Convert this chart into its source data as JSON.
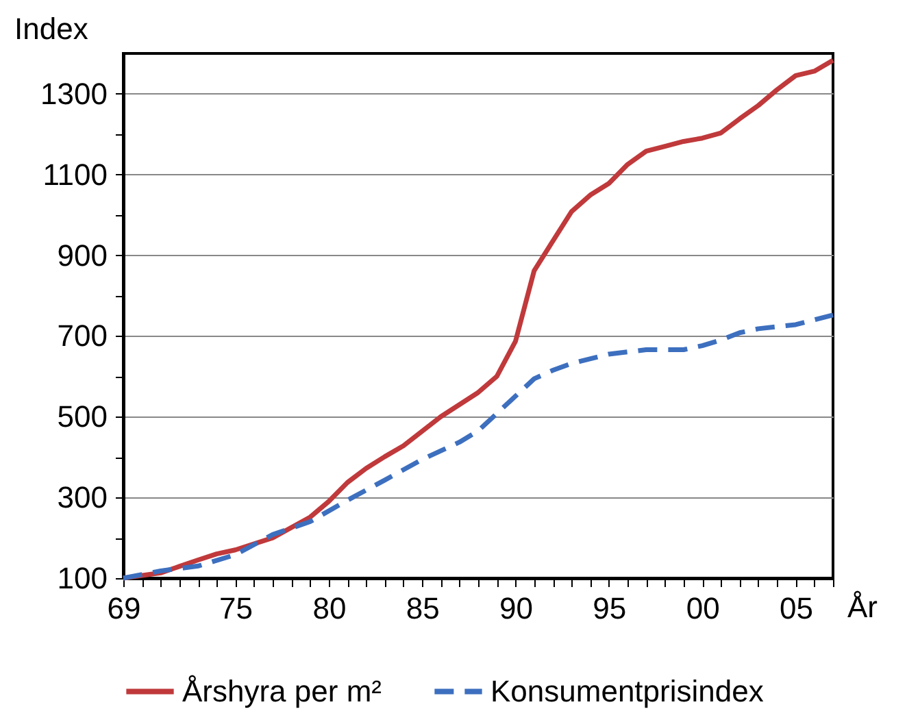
{
  "chart_data": {
    "type": "line",
    "ylabel": "Index",
    "xlabel": "År",
    "xlim": [
      1969,
      2007
    ],
    "ylim": [
      100,
      1400
    ],
    "xticks": [
      {
        "value": 1969,
        "label": "69"
      },
      {
        "value": 1970,
        "label": null
      },
      {
        "value": 1971,
        "label": null
      },
      {
        "value": 1972,
        "label": null
      },
      {
        "value": 1973,
        "label": null
      },
      {
        "value": 1974,
        "label": null
      },
      {
        "value": 1975,
        "label": "75"
      },
      {
        "value": 1976,
        "label": null
      },
      {
        "value": 1977,
        "label": null
      },
      {
        "value": 1978,
        "label": null
      },
      {
        "value": 1979,
        "label": null
      },
      {
        "value": 1980,
        "label": "80"
      },
      {
        "value": 1981,
        "label": null
      },
      {
        "value": 1982,
        "label": null
      },
      {
        "value": 1983,
        "label": null
      },
      {
        "value": 1984,
        "label": null
      },
      {
        "value": 1985,
        "label": "85"
      },
      {
        "value": 1986,
        "label": null
      },
      {
        "value": 1987,
        "label": null
      },
      {
        "value": 1988,
        "label": null
      },
      {
        "value": 1989,
        "label": null
      },
      {
        "value": 1990,
        "label": "90"
      },
      {
        "value": 1991,
        "label": null
      },
      {
        "value": 1992,
        "label": null
      },
      {
        "value": 1993,
        "label": null
      },
      {
        "value": 1994,
        "label": null
      },
      {
        "value": 1995,
        "label": "95"
      },
      {
        "value": 1996,
        "label": null
      },
      {
        "value": 1997,
        "label": null
      },
      {
        "value": 1998,
        "label": null
      },
      {
        "value": 1999,
        "label": null
      },
      {
        "value": 2000,
        "label": "00"
      },
      {
        "value": 2001,
        "label": null
      },
      {
        "value": 2002,
        "label": null
      },
      {
        "value": 2003,
        "label": null
      },
      {
        "value": 2004,
        "label": null
      },
      {
        "value": 2005,
        "label": "05"
      },
      {
        "value": 2006,
        "label": null
      },
      {
        "value": 2007,
        "label": null
      }
    ],
    "yticks": [
      100,
      {
        "value": 200,
        "label": null
      },
      300,
      {
        "value": 400,
        "label": null
      },
      500,
      {
        "value": 600,
        "label": null
      },
      700,
      {
        "value": 800,
        "label": null
      },
      900,
      {
        "value": 1000,
        "label": null
      },
      1100,
      {
        "value": 1200,
        "label": null
      },
      1300
    ],
    "grid": "y",
    "legend": "bottom",
    "series": [
      {
        "name": "Årshyra per m²",
        "color": "#c0393b",
        "line_style": "solid",
        "x": [
          1969,
          1971,
          1972,
          1973,
          1974,
          1975,
          1977,
          1979,
          1980,
          1981,
          1982,
          1983,
          1984,
          1986,
          1988,
          1989,
          1990,
          1991,
          1992,
          1993,
          1994,
          1995,
          1996,
          1997,
          1998,
          1999,
          2000,
          2001,
          2002,
          2003,
          2004,
          2005,
          2006,
          2007
        ],
        "values": [
          100,
          113,
          129,
          145,
          160,
          170,
          200,
          251,
          290,
          337,
          372,
          401,
          428,
          500,
          560,
          600,
          687,
          862,
          935,
          1008,
          1049,
          1078,
          1125,
          1158,
          1170,
          1182,
          1190,
          1203,
          1238,
          1271,
          1310,
          1345,
          1356,
          1383
        ]
      },
      {
        "name": "Konsumentprisindex",
        "color": "#3d6fbf",
        "line_style": "dashed",
        "x": [
          1969,
          1971,
          1973,
          1975,
          1977,
          1979,
          1981,
          1983,
          1985,
          1987,
          1988,
          1989,
          1990,
          1991,
          1992,
          1993,
          1995,
          1997,
          1999,
          2000,
          2001,
          2002,
          2003,
          2005,
          2007
        ],
        "values": [
          100,
          118,
          130,
          158,
          208,
          240,
          293,
          343,
          394,
          437,
          465,
          508,
          551,
          594,
          615,
          632,
          655,
          666,
          666,
          676,
          690,
          708,
          718,
          728,
          752
        ]
      }
    ]
  }
}
